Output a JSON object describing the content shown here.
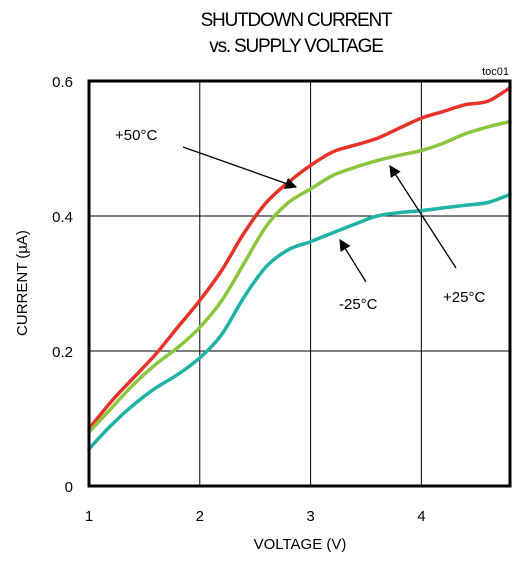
{
  "chart_data": {
    "type": "line",
    "title": [
      "SHUTDOWN CURRENT",
      "vs. SUPPLY VOLTAGE"
    ],
    "code": "toc01",
    "xlabel": "VOLTAGE (V)",
    "ylabel": "CURRENT (µA)",
    "xlim": [
      1,
      4.8
    ],
    "ylim": [
      0,
      0.6
    ],
    "x_ticks": [
      1,
      2,
      3,
      4
    ],
    "x_tick_labels": [
      "1",
      "2",
      "3",
      "4"
    ],
    "y_ticks": [
      0,
      0.2,
      0.4,
      0.6
    ],
    "y_tick_labels": [
      "0",
      "0.2",
      "0.4",
      "0.6"
    ],
    "grid": true,
    "series": [
      {
        "name": "+50°C",
        "color": "#e8332a",
        "x": [
          1.0,
          1.2,
          1.4,
          1.6,
          1.8,
          2.0,
          2.2,
          2.4,
          2.6,
          2.8,
          3.0,
          3.2,
          3.4,
          3.6,
          3.8,
          4.0,
          4.2,
          4.4,
          4.6,
          4.8
        ],
        "y": [
          0.085,
          0.125,
          0.16,
          0.195,
          0.235,
          0.275,
          0.32,
          0.375,
          0.42,
          0.45,
          0.475,
          0.495,
          0.505,
          0.515,
          0.53,
          0.545,
          0.555,
          0.565,
          0.57,
          0.59
        ]
      },
      {
        "name": "+25°C",
        "color": "#8cc63f",
        "x": [
          1.0,
          1.2,
          1.4,
          1.6,
          1.8,
          2.0,
          2.2,
          2.4,
          2.6,
          2.8,
          3.0,
          3.2,
          3.4,
          3.6,
          3.8,
          4.0,
          4.2,
          4.4,
          4.6,
          4.8
        ],
        "y": [
          0.08,
          0.115,
          0.15,
          0.18,
          0.205,
          0.235,
          0.275,
          0.33,
          0.385,
          0.42,
          0.44,
          0.46,
          0.472,
          0.482,
          0.49,
          0.497,
          0.508,
          0.522,
          0.532,
          0.54
        ]
      },
      {
        "name": "-25°C",
        "color": "#1fb3a6",
        "x": [
          1.0,
          1.2,
          1.4,
          1.6,
          1.8,
          2.0,
          2.2,
          2.4,
          2.6,
          2.8,
          3.0,
          3.2,
          3.4,
          3.6,
          3.8,
          4.0,
          4.2,
          4.4,
          4.6,
          4.8
        ],
        "y": [
          0.055,
          0.09,
          0.12,
          0.145,
          0.165,
          0.19,
          0.225,
          0.28,
          0.325,
          0.35,
          0.362,
          0.375,
          0.388,
          0.4,
          0.405,
          0.408,
          0.412,
          0.416,
          0.42,
          0.432
        ]
      }
    ],
    "annotations": [
      {
        "text": "+50°C",
        "points_to": [
          2.85,
          0.475
        ]
      },
      {
        "text": "+25°C",
        "points_to": [
          3.7,
          0.475
        ]
      },
      {
        "text": "-25°C",
        "points_to": [
          3.3,
          0.365
        ]
      }
    ]
  }
}
